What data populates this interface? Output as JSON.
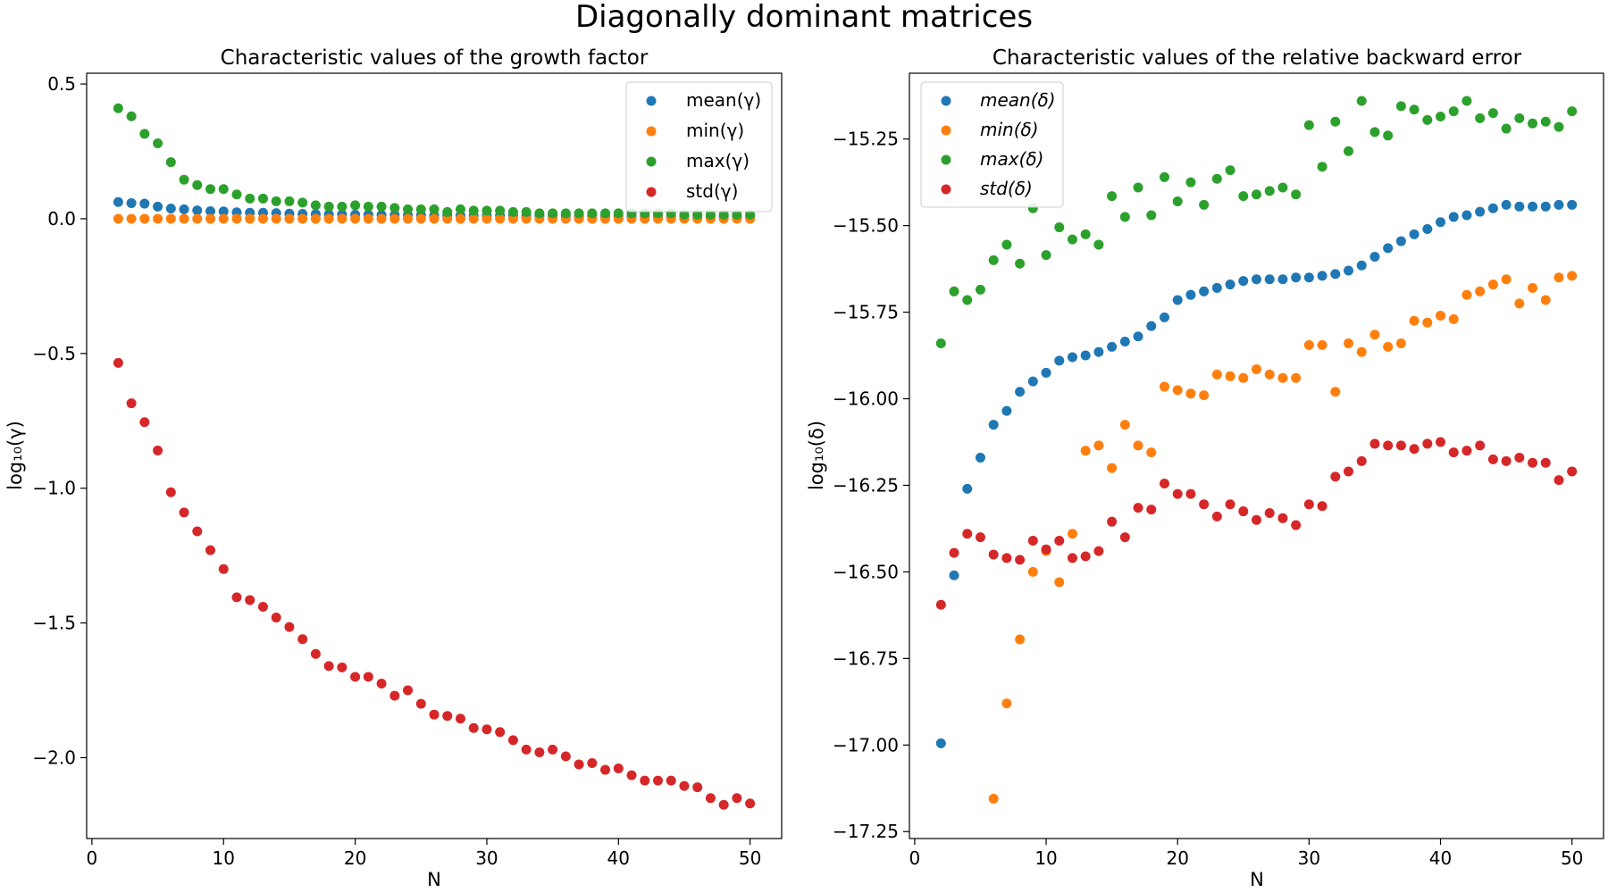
{
  "figure": {
    "title": "Diagonally dominant matrices"
  },
  "colors": {
    "mean": "#1f77b4",
    "min": "#ff7f0e",
    "max": "#2ca02c",
    "std": "#d62728"
  },
  "chart_data": [
    {
      "type": "scatter",
      "title": "Characteristic values of the growth factor",
      "xlabel": "N",
      "ylabel": "log₁₀(γ)",
      "xlim": [
        -0.4,
        52.4
      ],
      "ylim": [
        -2.3,
        0.54
      ],
      "xticks": [
        0,
        10,
        20,
        30,
        40,
        50
      ],
      "xtick_labels": [
        "0",
        "10",
        "20",
        "30",
        "40",
        "50"
      ],
      "yticks": [
        0.5,
        0.0,
        -0.5,
        -1.0,
        -1.5,
        -2.0
      ],
      "ytick_labels": [
        "0.5",
        "0.0",
        "−0.5",
        "−1.0",
        "−1.5",
        "−2.0"
      ],
      "legend_position": "top-right",
      "grid": false,
      "x": [
        2,
        3,
        4,
        5,
        6,
        7,
        8,
        9,
        10,
        11,
        12,
        13,
        14,
        15,
        16,
        17,
        18,
        19,
        20,
        21,
        22,
        23,
        24,
        25,
        26,
        27,
        28,
        29,
        30,
        31,
        32,
        33,
        34,
        35,
        36,
        37,
        38,
        39,
        40,
        41,
        42,
        43,
        44,
        45,
        46,
        47,
        48,
        49,
        50
      ],
      "series": [
        {
          "name": "mean(γ)",
          "color": "#1f77b4",
          "values": [
            0.062,
            0.058,
            0.056,
            0.045,
            0.038,
            0.035,
            0.031,
            0.028,
            0.027,
            0.024,
            0.022,
            0.022,
            0.021,
            0.019,
            0.018,
            0.017,
            0.016,
            0.016,
            0.015,
            0.015,
            0.014,
            0.014,
            0.013,
            0.013,
            0.012,
            0.012,
            0.012,
            0.011,
            0.011,
            0.011,
            0.011,
            0.01,
            0.01,
            0.01,
            0.01,
            0.009,
            0.009,
            0.009,
            0.009,
            0.009,
            0.008,
            0.008,
            0.008,
            0.008,
            0.008,
            0.008,
            0.007,
            0.007,
            0.007
          ]
        },
        {
          "name": "min(γ)",
          "color": "#ff7f0e",
          "values": [
            0.0,
            0.0,
            0.0,
            0.0,
            0.0,
            0.0,
            0.0,
            0.0,
            0.0,
            0.0,
            0.0,
            0.0,
            0.0,
            0.0,
            0.0,
            0.0,
            0.0,
            0.0,
            0.0,
            0.0,
            0.0,
            0.0,
            0.0,
            0.0,
            0.0,
            0.0,
            0.0,
            0.0,
            0.0,
            0.0,
            0.0,
            0.0,
            0.0,
            0.0,
            0.0,
            0.0,
            0.0,
            0.0,
            0.0,
            0.0,
            0.0,
            0.0,
            0.0,
            0.0,
            0.0,
            0.0,
            0.0,
            0.0,
            0.0
          ]
        },
        {
          "name": "max(γ)",
          "color": "#2ca02c",
          "values": [
            0.41,
            0.38,
            0.315,
            0.28,
            0.21,
            0.145,
            0.125,
            0.11,
            0.11,
            0.09,
            0.075,
            0.075,
            0.065,
            0.065,
            0.06,
            0.05,
            0.045,
            0.045,
            0.05,
            0.045,
            0.045,
            0.04,
            0.035,
            0.035,
            0.035,
            0.025,
            0.035,
            0.03,
            0.03,
            0.03,
            0.025,
            0.025,
            0.02,
            0.02,
            0.02,
            0.02,
            0.02,
            0.02,
            0.02,
            0.02,
            0.02,
            0.02,
            0.02,
            0.015,
            0.015,
            0.015,
            0.015,
            0.015,
            0.015
          ]
        },
        {
          "name": "std(γ)",
          "color": "#d62728",
          "values": [
            -0.535,
            -0.685,
            -0.755,
            -0.86,
            -1.015,
            -1.09,
            -1.16,
            -1.23,
            -1.3,
            -1.405,
            -1.415,
            -1.44,
            -1.48,
            -1.515,
            -1.56,
            -1.615,
            -1.66,
            -1.665,
            -1.7,
            -1.7,
            -1.725,
            -1.77,
            -1.75,
            -1.8,
            -1.84,
            -1.845,
            -1.855,
            -1.89,
            -1.895,
            -1.905,
            -1.935,
            -1.97,
            -1.98,
            -1.97,
            -1.995,
            -2.025,
            -2.02,
            -2.045,
            -2.04,
            -2.065,
            -2.085,
            -2.085,
            -2.085,
            -2.105,
            -2.11,
            -2.15,
            -2.175,
            -2.15,
            -2.17
          ]
        }
      ]
    },
    {
      "type": "scatter",
      "title": "Characteristic values of the relative backward error",
      "xlabel": "N",
      "ylabel": "log₁₀(δ)",
      "xlim": [
        -0.4,
        52.4
      ],
      "ylim": [
        -17.27,
        -15.06
      ],
      "xticks": [
        0,
        10,
        20,
        30,
        40,
        50
      ],
      "xtick_labels": [
        "0",
        "10",
        "20",
        "30",
        "40",
        "50"
      ],
      "yticks": [
        -15.25,
        -15.5,
        -15.75,
        -16.0,
        -16.25,
        -16.5,
        -16.75,
        -17.0,
        -17.25
      ],
      "ytick_labels": [
        "−15.25",
        "−15.50",
        "−15.75",
        "−16.00",
        "−16.25",
        "−16.50",
        "−16.75",
        "−17.00",
        "−17.25"
      ],
      "legend_position": "top-left",
      "grid": false,
      "x": [
        2,
        3,
        4,
        5,
        6,
        7,
        8,
        9,
        10,
        11,
        12,
        13,
        14,
        15,
        16,
        17,
        18,
        19,
        20,
        21,
        22,
        23,
        24,
        25,
        26,
        27,
        28,
        29,
        30,
        31,
        32,
        33,
        34,
        35,
        36,
        37,
        38,
        39,
        40,
        41,
        42,
        43,
        44,
        45,
        46,
        47,
        48,
        49,
        50
      ],
      "series": [
        {
          "name": "mean(δ)",
          "color": "#1f77b4",
          "values": [
            -16.995,
            -16.51,
            -16.26,
            -16.17,
            -16.075,
            -16.035,
            -15.98,
            -15.95,
            -15.925,
            -15.89,
            -15.88,
            -15.875,
            -15.865,
            -15.85,
            -15.835,
            -15.82,
            -15.79,
            -15.765,
            -15.715,
            -15.7,
            -15.69,
            -15.68,
            -15.67,
            -15.66,
            -15.655,
            -15.655,
            -15.655,
            -15.65,
            -15.65,
            -15.645,
            -15.64,
            -15.63,
            -15.615,
            -15.59,
            -15.565,
            -15.545,
            -15.525,
            -15.51,
            -15.49,
            -15.475,
            -15.47,
            -15.46,
            -15.45,
            -15.44,
            -15.445,
            -15.445,
            -15.445,
            -15.44,
            -15.44
          ]
        },
        {
          "name": "min(δ)",
          "color": "#ff7f0e",
          "values": [
            null,
            null,
            null,
            null,
            -17.155,
            -16.88,
            -16.695,
            -16.5,
            -16.44,
            -16.53,
            -16.39,
            -16.15,
            -16.135,
            -16.2,
            -16.075,
            -16.135,
            -16.155,
            -15.965,
            -15.975,
            -15.985,
            -15.99,
            -15.93,
            -15.935,
            -15.94,
            -15.915,
            -15.93,
            -15.94,
            -15.94,
            -15.845,
            -15.845,
            -15.98,
            -15.84,
            -15.865,
            -15.815,
            -15.85,
            -15.84,
            -15.775,
            -15.78,
            -15.76,
            -15.77,
            -15.7,
            -15.69,
            -15.67,
            -15.655,
            -15.725,
            -15.68,
            -15.715,
            -15.65,
            -15.645
          ]
        },
        {
          "name": "max(δ)",
          "color": "#2ca02c",
          "values": [
            -15.84,
            -15.69,
            -15.715,
            -15.685,
            -15.6,
            -15.555,
            -15.61,
            -15.45,
            -15.585,
            -15.505,
            -15.54,
            -15.525,
            -15.555,
            -15.415,
            -15.475,
            -15.39,
            -15.47,
            -15.36,
            -15.43,
            -15.375,
            -15.44,
            -15.365,
            -15.34,
            -15.415,
            -15.41,
            -15.4,
            -15.39,
            -15.41,
            -15.21,
            -15.33,
            -15.2,
            -15.285,
            -15.14,
            -15.23,
            -15.24,
            -15.155,
            -15.165,
            -15.195,
            -15.185,
            -15.17,
            -15.14,
            -15.19,
            -15.175,
            -15.22,
            -15.19,
            -15.205,
            -15.2,
            -15.215,
            -15.17
          ]
        },
        {
          "name": "std(δ)",
          "color": "#d62728",
          "values": [
            -16.595,
            -16.445,
            -16.39,
            -16.4,
            -16.45,
            -16.46,
            -16.465,
            -16.41,
            -16.435,
            -16.41,
            -16.46,
            -16.455,
            -16.44,
            -16.355,
            -16.4,
            -16.315,
            -16.32,
            -16.245,
            -16.275,
            -16.275,
            -16.305,
            -16.34,
            -16.305,
            -16.325,
            -16.35,
            -16.33,
            -16.345,
            -16.365,
            -16.305,
            -16.31,
            -16.225,
            -16.21,
            -16.18,
            -16.13,
            -16.135,
            -16.135,
            -16.145,
            -16.13,
            -16.125,
            -16.155,
            -16.15,
            -16.135,
            -16.175,
            -16.18,
            -16.17,
            -16.185,
            -16.185,
            -16.235,
            -16.21
          ]
        }
      ]
    }
  ]
}
